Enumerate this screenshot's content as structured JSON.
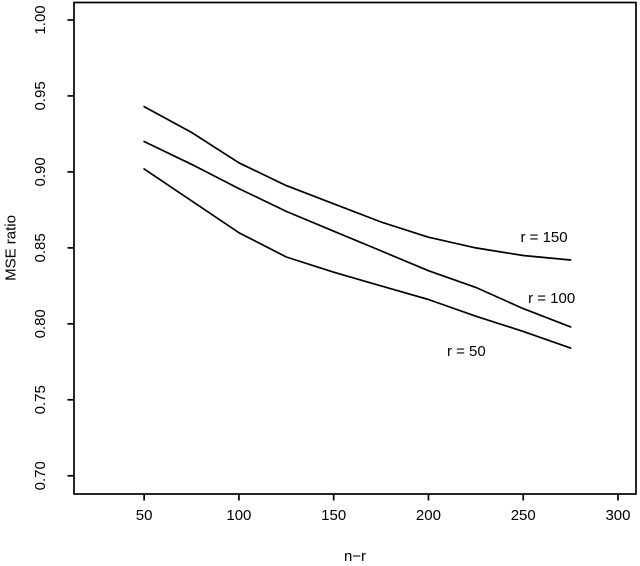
{
  "figure": {
    "background_color": "#ffffff",
    "line_color": "#000000",
    "text_color": "#000000"
  },
  "chart_data": {
    "type": "line",
    "title": "",
    "xlabel": "n−r",
    "ylabel": "MSE ratio",
    "grid": false,
    "legend_position": "inline-labels-right",
    "xlim": [
      13,
      309.5
    ],
    "ylim": [
      0.688,
      1.0115
    ],
    "x_ticks": [
      50,
      100,
      150,
      200,
      250,
      300
    ],
    "x_tick_labels": [
      "50",
      "100",
      "150",
      "200",
      "250",
      "300"
    ],
    "y_ticks": [
      0.7,
      0.75,
      0.8,
      0.85,
      0.9,
      0.95,
      1.0
    ],
    "y_tick_labels": [
      "0.70",
      "0.75",
      "0.80",
      "0.85",
      "0.90",
      "0.95",
      "1.00"
    ],
    "x": [
      50,
      75,
      100,
      125,
      150,
      175,
      200,
      225,
      250,
      275
    ],
    "series": [
      {
        "name": "r = 150",
        "values": [
          0.943,
          0.926,
          0.906,
          0.891,
          0.879,
          0.867,
          0.857,
          0.85,
          0.845,
          0.842
        ],
        "label_pos": {
          "x": 261,
          "y": 0.857
        }
      },
      {
        "name": "r = 100",
        "values": [
          0.92,
          0.905,
          0.889,
          0.874,
          0.861,
          0.848,
          0.835,
          0.824,
          0.81,
          0.798
        ],
        "label_pos": {
          "x": 265,
          "y": 0.817
        }
      },
      {
        "name": "r = 50",
        "values": [
          0.902,
          0.881,
          0.86,
          0.844,
          0.834,
          0.825,
          0.816,
          0.805,
          0.795,
          0.784
        ],
        "label_pos": {
          "x": 220,
          "y": 0.782
        }
      }
    ]
  }
}
